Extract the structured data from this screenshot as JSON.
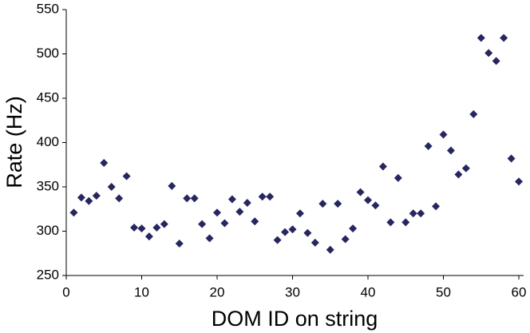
{
  "chart_data": {
    "type": "scatter",
    "x_label": "DOM ID on string",
    "y_label": "Rate  (Hz)",
    "color": "#262660",
    "x": [
      1,
      2,
      3,
      4,
      5,
      6,
      7,
      8,
      9,
      10,
      11,
      12,
      13,
      14,
      15,
      16,
      17,
      18,
      19,
      20,
      21,
      22,
      23,
      24,
      25,
      26,
      27,
      28,
      29,
      30,
      31,
      32,
      33,
      34,
      35,
      36,
      37,
      38,
      39,
      40,
      41,
      42,
      43,
      44,
      45,
      46,
      47,
      48,
      49,
      50,
      51,
      52,
      53,
      54,
      55,
      56,
      57,
      58,
      59,
      60
    ],
    "values": [
      321,
      338,
      334,
      340,
      377,
      350,
      337,
      362,
      304,
      303,
      294,
      304,
      308,
      351,
      286,
      337,
      337,
      308,
      292,
      321,
      309,
      336,
      322,
      332,
      311,
      339,
      339,
      290,
      299,
      302,
      320,
      298,
      287,
      331,
      279,
      331,
      291,
      303,
      344,
      335,
      329,
      373,
      310,
      360,
      310,
      320,
      320,
      396,
      328,
      409,
      391,
      364,
      371,
      432,
      518,
      501,
      492,
      518,
      382,
      356
    ],
    "xlim": [
      0,
      60
    ],
    "xticks": [
      0,
      10,
      20,
      30,
      40,
      50,
      60
    ],
    "ylim": [
      250,
      550
    ],
    "yticks": [
      250,
      300,
      350,
      400,
      450,
      500,
      550
    ]
  }
}
